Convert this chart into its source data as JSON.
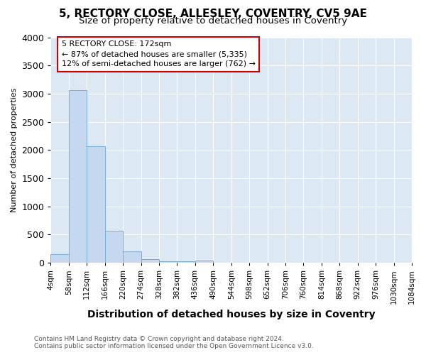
{
  "title": "5, RECTORY CLOSE, ALLESLEY, COVENTRY, CV5 9AE",
  "subtitle": "Size of property relative to detached houses in Coventry",
  "xlabel": "Distribution of detached houses by size in Coventry",
  "ylabel": "Number of detached properties",
  "bin_edges": [
    4,
    58,
    112,
    166,
    220,
    274,
    328,
    382,
    436,
    490,
    544,
    598,
    652,
    706,
    760,
    814,
    868,
    922,
    976,
    1030,
    1084
  ],
  "bar_heights": [
    150,
    3060,
    2070,
    565,
    205,
    65,
    30,
    20,
    40,
    0,
    0,
    0,
    0,
    0,
    0,
    0,
    0,
    0,
    0,
    0
  ],
  "bar_color": "#c5d8ef",
  "bar_edge_color": "#7aaed4",
  "annotation_line1": "5 RECTORY CLOSE: 172sqm",
  "annotation_line2": "← 87% of detached houses are smaller (5,335)",
  "annotation_line3": "12% of semi-detached houses are larger (762) →",
  "annotation_box_color": "#ffffff",
  "annotation_border_color": "#cc0000",
  "ylim": [
    0,
    4000
  ],
  "yticks": [
    0,
    500,
    1000,
    1500,
    2000,
    2500,
    3000,
    3500,
    4000
  ],
  "footnote1": "Contains HM Land Registry data © Crown copyright and database right 2024.",
  "footnote2": "Contains public sector information licensed under the Open Government Licence v3.0.",
  "fig_bg_color": "#ffffff",
  "plot_bg_color": "#dce9f5",
  "grid_color": "#ffffff",
  "title_fontsize": 11,
  "subtitle_fontsize": 9.5,
  "xlabel_fontsize": 10,
  "ylabel_fontsize": 8,
  "tick_label_fontsize": 7.5,
  "ytick_fontsize": 9
}
